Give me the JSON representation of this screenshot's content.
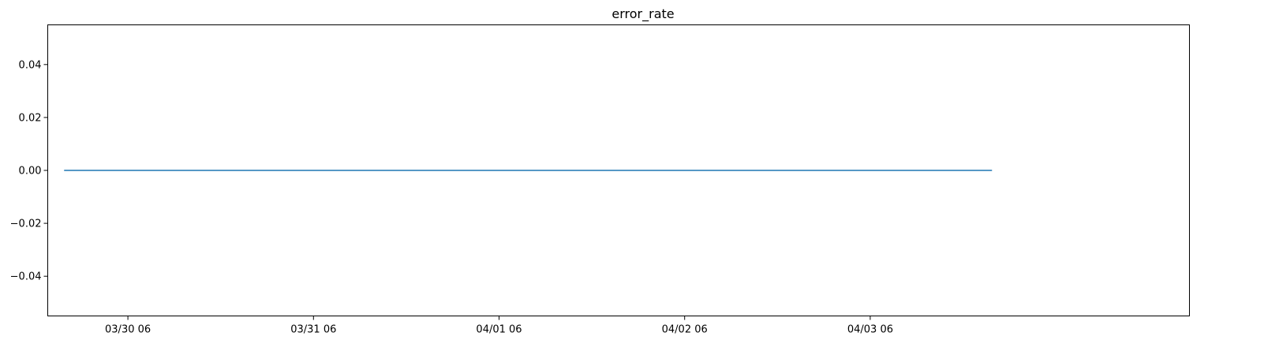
{
  "chart_data": {
    "type": "line",
    "title": "error_rate",
    "xlabel": "",
    "ylabel": "",
    "x_ticks": [
      {
        "x": "2025-03-30T06:00",
        "label": "03/30 06"
      },
      {
        "x": "2025-03-31T06:00",
        "label": "03/31 06"
      },
      {
        "x": "2025-04-01T06:00",
        "label": "04/01 06"
      },
      {
        "x": "2025-04-02T06:00",
        "label": "04/02 06"
      },
      {
        "x": "2025-04-03T06:00",
        "label": "04/03 06"
      }
    ],
    "y_ticks": [
      {
        "value": 0.04,
        "label": "0.04"
      },
      {
        "value": 0.02,
        "label": "0.02"
      },
      {
        "value": 0.0,
        "label": "0.00"
      },
      {
        "value": -0.02,
        "label": "−0.02"
      },
      {
        "value": -0.04,
        "label": "−0.04"
      }
    ],
    "xlim": [
      "2025-03-29T19:38",
      "2025-04-04T23:17"
    ],
    "ylim": [
      -0.055,
      0.055
    ],
    "grid": false,
    "series": [
      {
        "color": "#1f77b4",
        "x": [
          "2025-03-29T21:45",
          "2025-04-03T21:45"
        ],
        "y": [
          0.0,
          0.0
        ]
      }
    ]
  }
}
